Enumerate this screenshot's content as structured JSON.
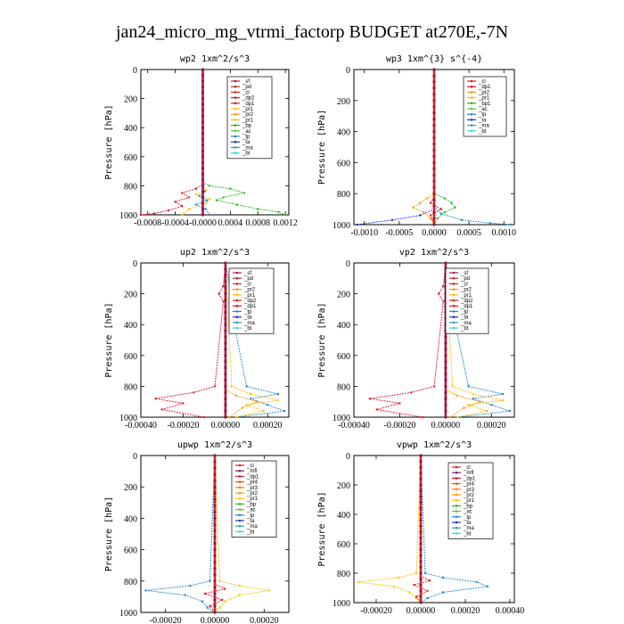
{
  "figure": {
    "title": "jan24_micro_mg_vtrmi_factorp  BUDGET at270E,-7N"
  },
  "colors": {
    "sf": "#c0104e",
    "pd": "#b03030",
    "cl": "#dd2222",
    "mfl": "#7a1c6e",
    "dp1": "#e0162b",
    "dp2": "#d02020",
    "pr1": "#ffc000",
    "pr2": "#ff9900",
    "pr3": "#ff7a00",
    "pr4": "#e05a00",
    "bp": "#22bb22",
    "bp1": "#22bb22",
    "ac": "#55cc22",
    "tp": "#2288cc",
    "ta": "#2233cc",
    "ma": "#3399bb",
    "bt": "#33dddd"
  },
  "chart_data": [
    {
      "type": "line",
      "title": "wp2  1xm^2/s^3",
      "ylabel": "Pressure [hPa]",
      "ylim": [
        1000,
        0
      ],
      "xlim": [
        -0.0009,
        0.00125
      ],
      "xticks": [
        -0.0008,
        -0.0004,
        0.0,
        0.0004,
        0.0008,
        0.0012
      ],
      "xtick_labels": [
        "-0.0008",
        "-0.0004",
        "-0.0000",
        "0.0004",
        "0.0008",
        "0.0012"
      ],
      "yticks": [
        0,
        200,
        400,
        600,
        800,
        1000
      ],
      "ytick_labels": [
        "0",
        "200",
        "400",
        "600",
        "800",
        "1000"
      ],
      "legend": [
        "_sf",
        "_pd",
        "_cl",
        "_dp2",
        "_dp1",
        "_pr1",
        "_pr2",
        "_pr1",
        "_bp",
        "_ac",
        "_tp",
        "_ta",
        "_ma",
        "_bt"
      ],
      "legend_keys": [
        "sf",
        "pd",
        "cl",
        "dp2",
        "dp1",
        "pr1",
        "pr2",
        "pr1",
        "bp",
        "ac",
        "tp",
        "ta",
        "ma",
        "bt"
      ],
      "series": [
        {
          "key": "bp",
          "p": [
            0,
            780,
            800,
            820,
            850,
            880,
            900,
            930,
            960,
            980,
            1000
          ],
          "x": [
            0,
            0,
            0.0001,
            0.0004,
            0.0006,
            0.0003,
            0.0002,
            0.0005,
            0.0008,
            0.0011,
            0.0012
          ]
        },
        {
          "key": "dp1",
          "p": [
            0,
            790,
            820,
            850,
            880,
            910,
            940,
            970,
            990,
            1000
          ],
          "x": [
            0,
            0,
            -0.0001,
            -0.0003,
            -0.0002,
            -0.0004,
            -0.0003,
            -0.0005,
            -0.0007,
            -0.0009
          ]
        },
        {
          "key": "pr1",
          "p": [
            0,
            800,
            830,
            860,
            890,
            920,
            960,
            1000
          ],
          "x": [
            0,
            0,
            5e-05,
            -0.0001,
            0.0001,
            5e-05,
            -0.0002,
            -0.0003
          ]
        },
        {
          "key": "tp",
          "p": [
            0,
            800,
            840,
            870,
            900,
            930,
            960,
            1000
          ],
          "x": [
            0,
            0,
            3e-05,
            -5e-05,
            6e-05,
            -0.0001,
            4e-05,
            0.0001
          ]
        },
        {
          "key": "sf",
          "p": [
            0,
            1000
          ],
          "x": [
            0,
            0
          ]
        }
      ]
    },
    {
      "type": "line",
      "title": "wp3  1xm^{3} s^{-4}",
      "ylabel": "Pressure [hPa]",
      "ylim": [
        1000,
        0
      ],
      "xlim": [
        -0.00115,
        0.00115
      ],
      "xticks": [
        -0.001,
        -0.0005,
        0.0,
        0.0005,
        0.001
      ],
      "xtick_labels": [
        "-0.0010",
        "-0.0005",
        "0.0000",
        "0.0005",
        "0.0010"
      ],
      "yticks": [
        0,
        200,
        400,
        600,
        800,
        1000
      ],
      "ytick_labels": [
        "0",
        "200",
        "400",
        "600",
        "800",
        "1000"
      ],
      "legend": [
        "_cl",
        "_dp1",
        "_pr2",
        "_pr1",
        "_bp1",
        "_ac",
        "_tp",
        "_ta",
        "_ma",
        "_bt"
      ],
      "legend_keys": [
        "cl",
        "dp1",
        "pr2",
        "pr1",
        "bp1",
        "ac",
        "tp",
        "ta",
        "ma",
        "bt"
      ],
      "series": [
        {
          "key": "ta",
          "p": [
            0,
            900,
            940,
            970,
            1000
          ],
          "x": [
            0,
            0,
            -0.0002,
            -0.0006,
            -0.0011
          ]
        },
        {
          "key": "tp",
          "p": [
            0,
            880,
            930,
            970,
            990,
            1000
          ],
          "x": [
            0,
            0,
            0.0001,
            0.0004,
            0.0008,
            0.0011
          ]
        },
        {
          "key": "bp1",
          "p": [
            0,
            800,
            830,
            860,
            890,
            920,
            960,
            1000
          ],
          "x": [
            0,
            0,
            0.00015,
            0.00025,
            0.0003,
            0.00015,
            5e-05,
            0
          ]
        },
        {
          "key": "pr2",
          "p": [
            0,
            800,
            830,
            860,
            890,
            920,
            960,
            1000
          ],
          "x": [
            0,
            0,
            -0.0001,
            -0.0002,
            -0.0003,
            -0.00015,
            -5e-05,
            0
          ]
        },
        {
          "key": "dp1",
          "p": [
            0,
            820,
            860,
            900,
            940,
            1000
          ],
          "x": [
            0,
            0,
            -5e-05,
            0.0001,
            -5e-05,
            0
          ]
        },
        {
          "key": "cl",
          "p": [
            0,
            1000
          ],
          "x": [
            0,
            0
          ]
        }
      ]
    },
    {
      "type": "line",
      "title": "up2  1xm^2/s^3",
      "ylabel": "Pressure [hPa]",
      "ylim": [
        1000,
        0
      ],
      "xlim": [
        -0.0004,
        0.0003
      ],
      "xticks": [
        -0.0004,
        -0.0002,
        0.0,
        0.0002
      ],
      "xtick_labels": [
        "-0.00040",
        "-0.00020",
        "0.00000",
        "0.00020"
      ],
      "yticks": [
        0,
        200,
        400,
        600,
        800,
        1000
      ],
      "ytick_labels": [
        "0",
        "200",
        "400",
        "600",
        "800",
        "1000"
      ],
      "legend": [
        "_sf",
        "_pd",
        "_cl",
        "_pr2",
        "_pr1",
        "_dp2",
        "_dp1",
        "_tp",
        "_ta",
        "_ma",
        "_bt"
      ],
      "legend_keys": [
        "sf",
        "pd",
        "cl",
        "pr2",
        "pr1",
        "dp2",
        "dp1",
        "tp",
        "ta",
        "ma",
        "bt"
      ],
      "series": [
        {
          "key": "dp1",
          "p": [
            0,
            150,
            200,
            250,
            800,
            840,
            880,
            910,
            950,
            1000
          ],
          "x": [
            0,
            -1e-05,
            -3e-05,
            -1e-05,
            -5e-05,
            -0.00015,
            -0.00033,
            -0.0002,
            -0.0003,
            -0.0001
          ]
        },
        {
          "key": "tp",
          "p": [
            0,
            150,
            200,
            250,
            800,
            850,
            880,
            920,
            960,
            1000
          ],
          "x": [
            0,
            2e-05,
            4e-05,
            2e-05,
            0.0001,
            0.00025,
            0.00012,
            0.0002,
            0.00028,
            5e-05
          ]
        },
        {
          "key": "pr1",
          "p": [
            0,
            800,
            850,
            890,
            920,
            960,
            1000
          ],
          "x": [
            0,
            3e-05,
            0.00012,
            0.00025,
            0.0001,
            0.00018,
            5e-05
          ]
        },
        {
          "key": "pr2",
          "p": [
            0,
            820,
            860,
            900,
            940,
            1000
          ],
          "x": [
            0,
            0,
            5e-05,
            0.00015,
            8e-05,
            2e-05
          ]
        },
        {
          "key": "sf",
          "p": [
            0,
            1000
          ],
          "x": [
            0,
            0
          ]
        }
      ]
    },
    {
      "type": "line",
      "title": "vp2  1xm^2/s^3",
      "ylabel": "Pressure [hPa]",
      "ylim": [
        1000,
        0
      ],
      "xlim": [
        -0.0004,
        0.0003
      ],
      "xticks": [
        -0.0004,
        -0.0002,
        0.0,
        0.0002
      ],
      "xtick_labels": [
        "-0.00040",
        "-0.00020",
        "0.00000",
        "0.00020"
      ],
      "yticks": [
        0,
        200,
        400,
        600,
        800,
        1000
      ],
      "ytick_labels": [
        "0",
        "200",
        "400",
        "600",
        "800",
        "1000"
      ],
      "legend": [
        "_sf",
        "_pd",
        "_cl",
        "_pr2",
        "_pr1",
        "_dp2",
        "_dp1",
        "_tp",
        "_ta",
        "_ma",
        "_bt"
      ],
      "legend_keys": [
        "sf",
        "pd",
        "cl",
        "pr2",
        "pr1",
        "dp2",
        "dp1",
        "tp",
        "ta",
        "ma",
        "bt"
      ],
      "series": [
        {
          "key": "dp1",
          "p": [
            0,
            150,
            200,
            250,
            800,
            840,
            880,
            910,
            950,
            1000
          ],
          "x": [
            0,
            -1e-05,
            -3e-05,
            -1e-05,
            -5e-05,
            -0.00015,
            -0.00033,
            -0.0002,
            -0.0003,
            -0.0001
          ]
        },
        {
          "key": "tp",
          "p": [
            0,
            150,
            200,
            250,
            800,
            850,
            880,
            920,
            960,
            1000
          ],
          "x": [
            0,
            2e-05,
            4e-05,
            2e-05,
            0.0001,
            0.00025,
            0.00012,
            0.0002,
            0.00028,
            5e-05
          ]
        },
        {
          "key": "pr1",
          "p": [
            0,
            800,
            850,
            890,
            920,
            960,
            1000
          ],
          "x": [
            0,
            3e-05,
            0.00012,
            0.00025,
            0.0001,
            0.00018,
            5e-05
          ]
        },
        {
          "key": "pr2",
          "p": [
            0,
            820,
            860,
            900,
            940,
            1000
          ],
          "x": [
            0,
            0,
            5e-05,
            0.00015,
            8e-05,
            2e-05
          ]
        },
        {
          "key": "sf",
          "p": [
            0,
            1000
          ],
          "x": [
            0,
            0
          ]
        }
      ]
    },
    {
      "type": "line",
      "title": "upwp  1xm^2/s^3",
      "ylabel": "Pressure [hPa]",
      "ylim": [
        1000,
        0
      ],
      "xlim": [
        -0.0003,
        0.0003
      ],
      "xticks": [
        -0.0002,
        0.0,
        0.0002
      ],
      "xtick_labels": [
        "-0.00020",
        "0.00000",
        "0.00020"
      ],
      "yticks": [
        0,
        200,
        400,
        600,
        800,
        1000
      ],
      "ytick_labels": [
        "0",
        "200",
        "400",
        "600",
        "800",
        "1000"
      ],
      "legend": [
        "_cl",
        "_mfl",
        "_dp1",
        "_pr4",
        "_pr3",
        "_pr2",
        "_pr1",
        "_bp",
        "_ac",
        "_tp",
        "_ta",
        "_ma",
        "_bt"
      ],
      "legend_keys": [
        "cl",
        "mfl",
        "dp1",
        "pr4",
        "pr3",
        "pr2",
        "pr1",
        "bp",
        "ac",
        "tp",
        "ta",
        "ma",
        "bt"
      ],
      "series": [
        {
          "key": "tp",
          "p": [
            0,
            800,
            830,
            860,
            890,
            930,
            970,
            1000
          ],
          "x": [
            0,
            -2e-05,
            -0.0001,
            -0.00028,
            -0.00012,
            -5e-05,
            -3e-05,
            0
          ]
        },
        {
          "key": "pr1",
          "p": [
            0,
            800,
            830,
            860,
            890,
            930,
            970,
            1000
          ],
          "x": [
            0,
            2e-05,
            0.0001,
            0.00022,
            0.0001,
            4e-05,
            2e-05,
            0
          ]
        },
        {
          "key": "dp1",
          "p": [
            0,
            820,
            850,
            880,
            920,
            960,
            1000
          ],
          "x": [
            0,
            0,
            4e-05,
            -4e-05,
            3e-05,
            -2e-05,
            0
          ]
        },
        {
          "key": "cl",
          "p": [
            0,
            1000
          ],
          "x": [
            0,
            0
          ]
        }
      ]
    },
    {
      "type": "line",
      "title": "vpwp  1xm^2/s^3",
      "ylabel": "Pressure [hPa]",
      "ylim": [
        1000,
        0
      ],
      "xlim": [
        -0.0003,
        0.00042
      ],
      "xticks": [
        -0.0002,
        0.0,
        0.0002,
        0.0004
      ],
      "xtick_labels": [
        "-0.00020",
        "0.00000",
        "0.00020",
        "0.00040"
      ],
      "yticks": [
        0,
        200,
        400,
        600,
        800,
        1000
      ],
      "ytick_labels": [
        "0",
        "200",
        "400",
        "600",
        "800",
        "1000"
      ],
      "legend": [
        "_cl",
        "_mfl",
        "_dp1",
        "_pr4",
        "_pr3",
        "_pr2",
        "_pr1",
        "_bp",
        "_ac",
        "_tp",
        "_ta",
        "_ma",
        "_bt"
      ],
      "legend_keys": [
        "cl",
        "mfl",
        "dp1",
        "pr4",
        "pr3",
        "pr2",
        "pr1",
        "bp",
        "ac",
        "tp",
        "ta",
        "ma",
        "bt"
      ],
      "series": [
        {
          "key": "pr1",
          "p": [
            0,
            800,
            830,
            860,
            890,
            930,
            970,
            1000
          ],
          "x": [
            0,
            -2e-05,
            -0.0001,
            -0.00028,
            -0.00012,
            -5e-05,
            -2e-05,
            0
          ]
        },
        {
          "key": "tp",
          "p": [
            0,
            800,
            830,
            860,
            890,
            930,
            970,
            1000
          ],
          "x": [
            0,
            2e-05,
            0.0001,
            0.00025,
            0.0003,
            0.0001,
            3e-05,
            0
          ]
        },
        {
          "key": "dp1",
          "p": [
            0,
            820,
            850,
            880,
            920,
            960,
            1000
          ],
          "x": [
            0,
            0,
            4e-05,
            -3e-05,
            3e-05,
            -2e-05,
            0
          ]
        },
        {
          "key": "cl",
          "p": [
            0,
            1000
          ],
          "x": [
            0,
            0
          ]
        }
      ]
    }
  ]
}
